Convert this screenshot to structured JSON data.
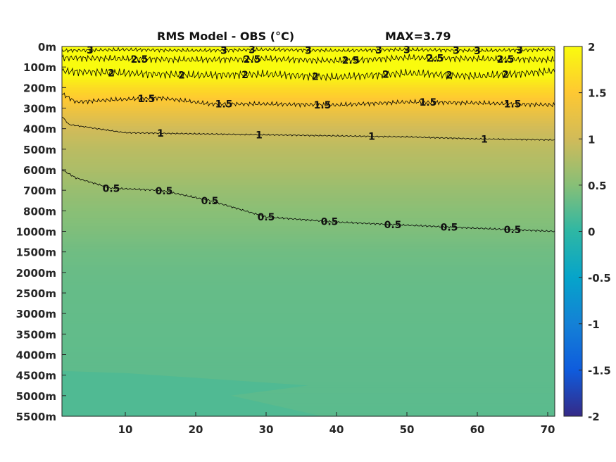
{
  "chart_data": {
    "type": "heatmap",
    "title": "RMS Model - OBS (°C)",
    "max_label": "MAX=3.79",
    "y_tick_labels": [
      "0m",
      "100m",
      "200m",
      "300m",
      "400m",
      "500m",
      "600m",
      "700m",
      "800m",
      "1000m",
      "1500m",
      "2000m",
      "2500m",
      "3000m",
      "3500m",
      "4000m",
      "4500m",
      "5000m",
      "5500m"
    ],
    "x_ticks": [
      10,
      20,
      30,
      40,
      50,
      60,
      70
    ],
    "x_range": [
      1,
      71
    ],
    "colorbar": {
      "range": [
        -2,
        2
      ],
      "ticks": [
        2,
        1.5,
        1,
        0.5,
        0,
        -0.5,
        -1,
        -1.5,
        -2
      ],
      "tick_labels": [
        "2",
        "1.5",
        "1",
        "0.5",
        "0",
        "-0.5",
        "-1",
        "-1.5",
        "-2"
      ],
      "colormap": "parula"
    },
    "depth_profile_approx": [
      {
        "depth_index": 0,
        "value": 2.9
      },
      {
        "depth_index": 1,
        "value": 2.2
      },
      {
        "depth_index": 2,
        "value": 1.7
      },
      {
        "depth_index": 3,
        "value": 1.35
      },
      {
        "depth_index": 4,
        "value": 1.0
      },
      {
        "depth_index": 5,
        "value": 0.85
      },
      {
        "depth_index": 6,
        "value": 0.75
      },
      {
        "depth_index": 7,
        "value": 0.62
      },
      {
        "depth_index": 8,
        "value": 0.52
      },
      {
        "depth_index": 9,
        "value": 0.45
      },
      {
        "depth_index": 10,
        "value": 0.37
      },
      {
        "depth_index": 11,
        "value": 0.33
      },
      {
        "depth_index": 12,
        "value": 0.31
      },
      {
        "depth_index": 13,
        "value": 0.3
      },
      {
        "depth_index": 14,
        "value": 0.29
      },
      {
        "depth_index": 15,
        "value": 0.28
      },
      {
        "depth_index": 16,
        "value": 0.27
      },
      {
        "depth_index": 17,
        "value": 0.26
      },
      {
        "depth_index": 18,
        "value": 0.25
      }
    ],
    "contours": [
      {
        "level": "0.5",
        "depth_index": [
          [
            1,
            6.0
          ],
          [
            3,
            6.4
          ],
          [
            8,
            6.9
          ],
          [
            15,
            7.0
          ],
          [
            22,
            7.5
          ],
          [
            30,
            8.3
          ],
          [
            40,
            8.55
          ],
          [
            50,
            8.7
          ],
          [
            60,
            8.85
          ],
          [
            71,
            9.0
          ]
        ],
        "label_x": [
          8,
          15.5,
          22,
          30,
          39,
          48,
          56,
          65
        ]
      },
      {
        "level": "1",
        "depth_index": [
          [
            1,
            3.4
          ],
          [
            2,
            3.8
          ],
          [
            10,
            4.2
          ],
          [
            20,
            4.25
          ],
          [
            30,
            4.3
          ],
          [
            40,
            4.35
          ],
          [
            50,
            4.4
          ],
          [
            60,
            4.5
          ],
          [
            71,
            4.55
          ]
        ],
        "label_x": [
          15,
          29,
          45,
          61
        ]
      },
      {
        "level": "1.5",
        "depth_index": [
          [
            1,
            2.3
          ],
          [
            3,
            2.7
          ],
          [
            8,
            2.6
          ],
          [
            15,
            2.5
          ],
          [
            22,
            2.8
          ],
          [
            30,
            2.8
          ],
          [
            40,
            2.85
          ],
          [
            50,
            2.7
          ],
          [
            60,
            2.75
          ],
          [
            71,
            2.85
          ]
        ],
        "label_x": [
          13,
          24,
          38,
          53,
          65
        ]
      },
      {
        "level": "2",
        "depth_index": [
          [
            1,
            1.2
          ],
          [
            10,
            1.3
          ],
          [
            20,
            1.4
          ],
          [
            30,
            1.35
          ],
          [
            40,
            1.5
          ],
          [
            50,
            1.3
          ],
          [
            60,
            1.45
          ],
          [
            71,
            1.2
          ]
        ],
        "label_x": [
          8,
          18,
          27,
          37,
          47,
          56,
          64
        ]
      },
      {
        "level": "2.5",
        "depth_index": [
          [
            1,
            0.55
          ],
          [
            10,
            0.6
          ],
          [
            20,
            0.65
          ],
          [
            30,
            0.6
          ],
          [
            40,
            0.7
          ],
          [
            50,
            0.55
          ],
          [
            60,
            0.6
          ],
          [
            71,
            0.65
          ]
        ],
        "label_x": [
          12,
          28,
          42,
          54,
          64
        ]
      },
      {
        "level": "3",
        "depth_index": [
          [
            1,
            0.2
          ],
          [
            10,
            0.15
          ],
          [
            20,
            0.2
          ],
          [
            30,
            0.15
          ],
          [
            40,
            0.2
          ],
          [
            50,
            0.15
          ],
          [
            60,
            0.2
          ],
          [
            71,
            0.15
          ]
        ],
        "label_x": [
          5,
          24,
          28,
          36,
          46,
          50,
          57,
          60,
          66
        ]
      }
    ]
  }
}
